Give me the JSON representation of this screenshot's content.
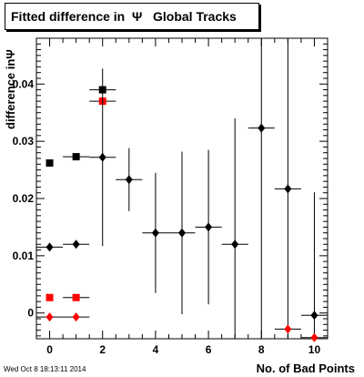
{
  "title": "Fitted difference in  Ψ   Global Tracks",
  "footer": "Wed Oct  8 18:13:11 2014",
  "chart_data": {
    "type": "scatter",
    "title": "Fitted difference in  Ψ   Global Tracks",
    "xlabel": "No. of Bad Points",
    "ylabel": "difference inΨ",
    "xlim": [
      -0.5,
      10.5
    ],
    "ylim": [
      -0.0045,
      0.048
    ],
    "xticks": [
      "0",
      "2",
      "4",
      "6",
      "8",
      "10"
    ],
    "yticks": [
      "0",
      "0.01",
      "0.02",
      "0.03",
      "0.04"
    ],
    "grid": false,
    "series": [
      {
        "marker": "square",
        "color": "#000000",
        "points": [
          {
            "x": 0,
            "y": 0.0262,
            "xerr": 0.0,
            "yerr": 0.0
          },
          {
            "x": 1,
            "y": 0.0273,
            "xerr": 0.5,
            "yerr": 0.0
          },
          {
            "x": 2,
            "y": 0.039,
            "xerr": 0.5,
            "yerr": 0.0
          }
        ]
      },
      {
        "marker": "square",
        "color": "#ff0000",
        "points": [
          {
            "x": 0,
            "y": 0.0027,
            "xerr": 0.0,
            "yerr": 0.0
          },
          {
            "x": 1,
            "y": 0.0027,
            "xerr": 0.5,
            "yerr": 0.0
          },
          {
            "x": 2,
            "y": 0.037,
            "xerr": 0.5,
            "yerr": 0.0
          }
        ]
      },
      {
        "marker": "diamond",
        "color": "#000000",
        "points": [
          {
            "x": 0,
            "y": 0.0115,
            "xerr": 0.5,
            "yerr": 0.0
          },
          {
            "x": 1,
            "y": 0.012,
            "xerr": 0.5,
            "yerr": 0.0
          },
          {
            "x": 2,
            "y": 0.0272,
            "xerr": 0.5,
            "yerr": 0.0155
          },
          {
            "x": 3,
            "y": 0.0233,
            "xerr": 0.5,
            "yerr": 0.0055
          },
          {
            "x": 4,
            "y": 0.014,
            "xerr": 0.5,
            "yerr": 0.0105
          },
          {
            "x": 5,
            "y": 0.014,
            "xerr": 0.5,
            "yerr": 0.0142
          },
          {
            "x": 6,
            "y": 0.015,
            "xerr": 0.5,
            "yerr": 0.0135
          },
          {
            "x": 7,
            "y": 0.012,
            "xerr": 0.5,
            "yerr": 0.022
          },
          {
            "x": 8,
            "y": 0.0323,
            "xerr": 0.5,
            "yerr": 0.042
          },
          {
            "x": 9,
            "y": 0.0217,
            "xerr": 0.5,
            "yerr": 0.03
          },
          {
            "x": 10,
            "y": -0.0004,
            "xerr": 0.5,
            "yerr": 0.0215
          }
        ]
      },
      {
        "marker": "diamond",
        "color": "#ff0000",
        "points": [
          {
            "x": 0,
            "y": -0.0007,
            "xerr": 0.5,
            "yerr": 0.0
          },
          {
            "x": 1,
            "y": -0.0007,
            "xerr": 0.5,
            "yerr": 0.0
          },
          {
            "x": 9,
            "y": -0.0028,
            "xerr": 0.5,
            "yerr": 0.0
          },
          {
            "x": 10,
            "y": -0.0043,
            "xerr": 0.5,
            "yerr": 0.0
          }
        ]
      }
    ]
  }
}
